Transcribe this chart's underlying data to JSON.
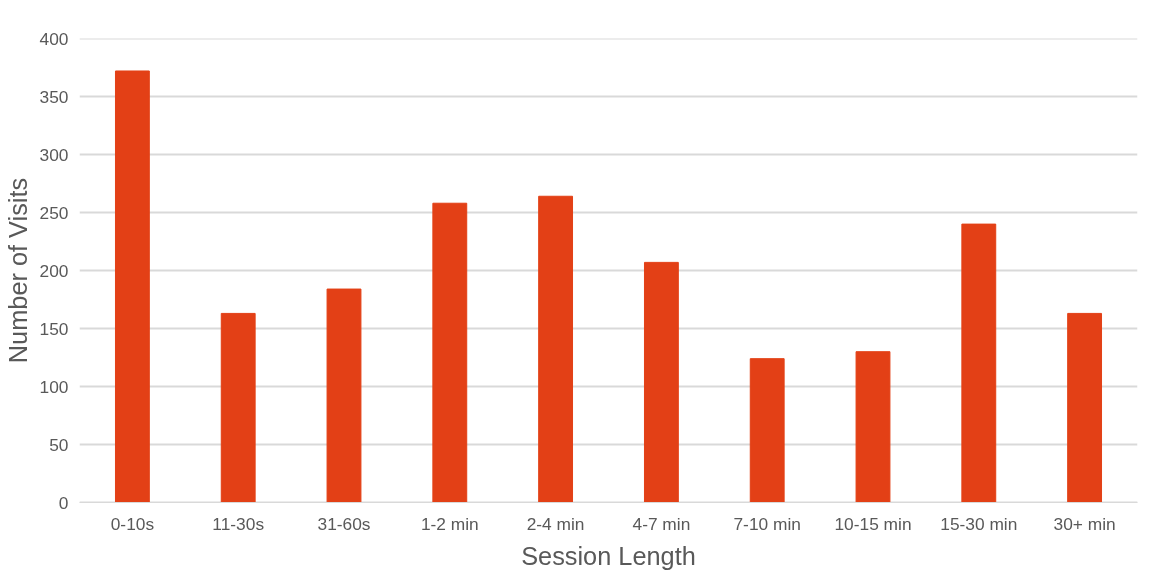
{
  "chart_data": {
    "type": "bar",
    "xlabel": "Session Length",
    "ylabel": "Number of Visits",
    "categories": [
      "0-10s",
      "11-30s",
      "31-60s",
      "1-2 min",
      "2-4 min",
      "4-7 min",
      "7-10 min",
      "10-15 min",
      "15-30 min",
      "30+ min"
    ],
    "values": [
      372,
      163,
      184,
      258,
      264,
      207,
      124,
      130,
      240,
      163
    ],
    "color": "#e34016",
    "ylim": [
      0,
      400
    ],
    "yticks": [
      0,
      50,
      100,
      150,
      200,
      250,
      300,
      350,
      400
    ],
    "grid": "y"
  }
}
